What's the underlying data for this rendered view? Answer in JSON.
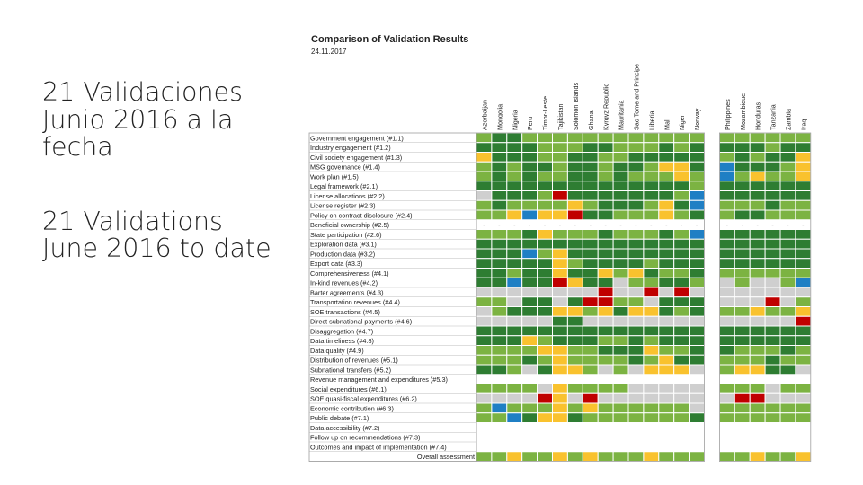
{
  "slide": {
    "text_es": "21 Validaciones Junio 2016 a la fecha",
    "text_en": "21 Validations June 2016 to date"
  },
  "chart_data": {
    "type": "table",
    "title": "Comparison of Validation Results",
    "date": "24.11.2017",
    "columns": [
      "Azerbaijan",
      "Mongolia",
      "Nigeria",
      "Peru",
      "Timor-Leste",
      "Tajikistan",
      "Solomon Islands",
      "Ghana",
      "Kyrgyz Republic",
      "Mauritania",
      "Sao Tome and Principe",
      "Liberia",
      "Mali",
      "Niger",
      "Norway",
      "Philippines",
      "Mozambique",
      "Honduras",
      "Tanzania",
      "Zambia",
      "Iraq"
    ],
    "rows": [
      "Government engagement (#1.1)",
      "Industry engagement (#1.2)",
      "Civil society engagement (#1.3)",
      "MSG governance (#1.4)",
      "Work plan (#1.5)",
      "Legal framework (#2.1)",
      "License allocations (#2.2)",
      "License register (#2.3)",
      "Policy on contract disclosure (#2.4)",
      "Beneficial ownership (#2.5)",
      "State participation (#2.6)",
      "Exploration data (#3.1)",
      "Production data (#3.2)",
      "Export data (#3.3)",
      "Comprehensiveness (#4.1)",
      "In-kind revenues (#4.2)",
      "Barter agreements (#4.3)",
      "Transportation revenues (#4.4)",
      "SOE transactions (#4.5)",
      "Direct subnational payments (#4.6)",
      "Disaggregation (#4.7)",
      "Data timeliness (#4.8)",
      "Data quality (#4.9)",
      "Distribution of revenues (#5.1)",
      "Subnational transfers (#5.2)",
      "Revenue management and expenditures (#5.3)",
      "Social expenditures (#6.1)",
      "SOE quasi-fiscal expenditures (#6.2)",
      "Economic contribution (#6.3)",
      "Public debate (#7.1)",
      "Data accessibility (#7.2)",
      "Follow up on recommendations (#7.3)",
      "Outcomes and impact of implementation (#7.4)",
      "Overall assessment"
    ],
    "legend_codes": {
      "E": "dark green",
      "S": "light green",
      "M": "yellow",
      "I": "red",
      "N": "grey",
      "B": "blue",
      "-": "not assessed"
    },
    "colors": {
      "E": "#2e7d32",
      "S": "#7cb342",
      "M": "#f9c22e",
      "I": "#c00000",
      "N": "#cfcfcf",
      "B": "#1f7fc4",
      "-": "#ffffff"
    },
    "grid": [
      "SEESSSSSSSSSSSS SSSSSS",
      "EEEESSSEESSSESE EEESEE",
      "MEEESSEESSEEEEE SESEEM",
      "SESEESEESEESMME BEEESM",
      "SESESSEESESSSMS BSMSSM",
      "EEEEEEEEEEEEEES EEEEEE",
      "NEEESIEEEEEEESB EEEEEE",
      "SESSSSMSEEESMEB SSSESS",
      "SSMBMMIEESSSMSE SEESSS",
      "--------------- ------",
      "SSSEMSSSESSSESB EEEEEE",
      "EEEEEEEEEEEEEEE EEEEEE",
      "EEEBSMEEEEEEEEE EEEEEE",
      "EEEEEMSEEEESEEE EEEEEE",
      "EESEEMEEMSMESSE SSSSSS",
      "EEBEEIMEENSSEES NSNNSB",
      "NNNNNNNNINNININ NNNNNN",
      "SSNEENEIISSNEEE NNNINS",
      "NSEEEMMSMEMMESE SSMSSM",
      "NNNNNEENNNNNNNN NNNNNI",
      "EEEEEEEEEEEEEEE EEEEEE",
      "EEEMSEEESSESEEE EEEEEE",
      "SSSSMMSSEEEMSSE ESSSES",
      "SSSESMSSSSESMEE SSSESS",
      "EESNEMMSNSNMMMN SMMEEN",
      "                      ",
      "SSSSNMSSSSNNNNN SSSNSS",
      "NNNNIMNINNNNNNN NIINNN",
      "SBSSSMSMSSSSSSN SSSSSS",
      "SSBEMMESSSSSSSE SSSSSS",
      "                      ",
      "                      ",
      "                      ",
      "SSMSSMSMSSSMSSS SSMSSM"
    ]
  }
}
